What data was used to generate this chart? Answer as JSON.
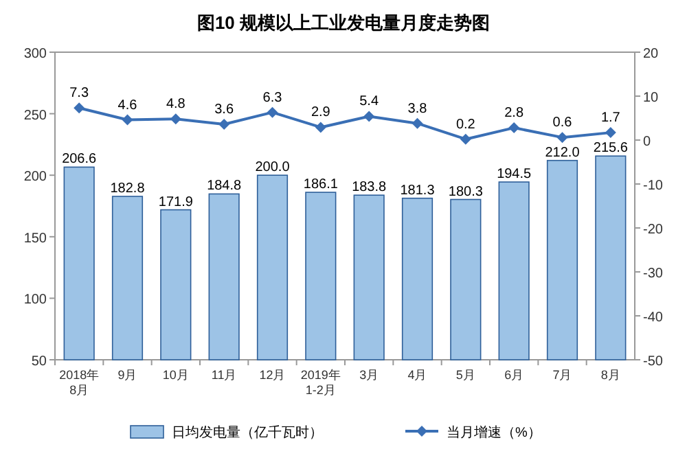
{
  "chart_data": {
    "type": "bar",
    "title": "图10  规模以上工业发电量月度走势图",
    "categories": [
      "2018年\n8月",
      "9月",
      "10月",
      "11月",
      "12月",
      "2019年\n1-2月",
      "3月",
      "4月",
      "5月",
      "6月",
      "7月",
      "8月"
    ],
    "series": [
      {
        "name": "日均发电量（亿千瓦时）",
        "color": "#9dc3e6",
        "values": [
          206.6,
          182.8,
          171.9,
          184.8,
          200.0,
          186.1,
          183.8,
          181.3,
          180.3,
          194.5,
          212.0,
          215.6
        ],
        "value_labels": [
          "206.6",
          "182.8",
          "171.9",
          "184.8",
          "200.0",
          "186.1",
          "183.8",
          "181.3",
          "180.3",
          "194.5",
          "212.0",
          "215.6"
        ]
      },
      {
        "name": "当月增速（%）",
        "type": "line",
        "axis": "y2",
        "marker": "diamond",
        "color": "#3a6fb5",
        "values": [
          7.3,
          4.6,
          4.8,
          3.6,
          6.3,
          2.9,
          5.4,
          3.8,
          0.2,
          2.8,
          0.6,
          1.7
        ]
      }
    ],
    "ylim": [
      50,
      300
    ],
    "yticks": [
      50,
      100,
      150,
      200,
      250,
      300
    ],
    "y2lim": [
      -50,
      20
    ],
    "y2ticks": [
      -50,
      -40,
      -30,
      -20,
      -10,
      0,
      10,
      20
    ],
    "data_labels": true,
    "legend": "bottom"
  }
}
